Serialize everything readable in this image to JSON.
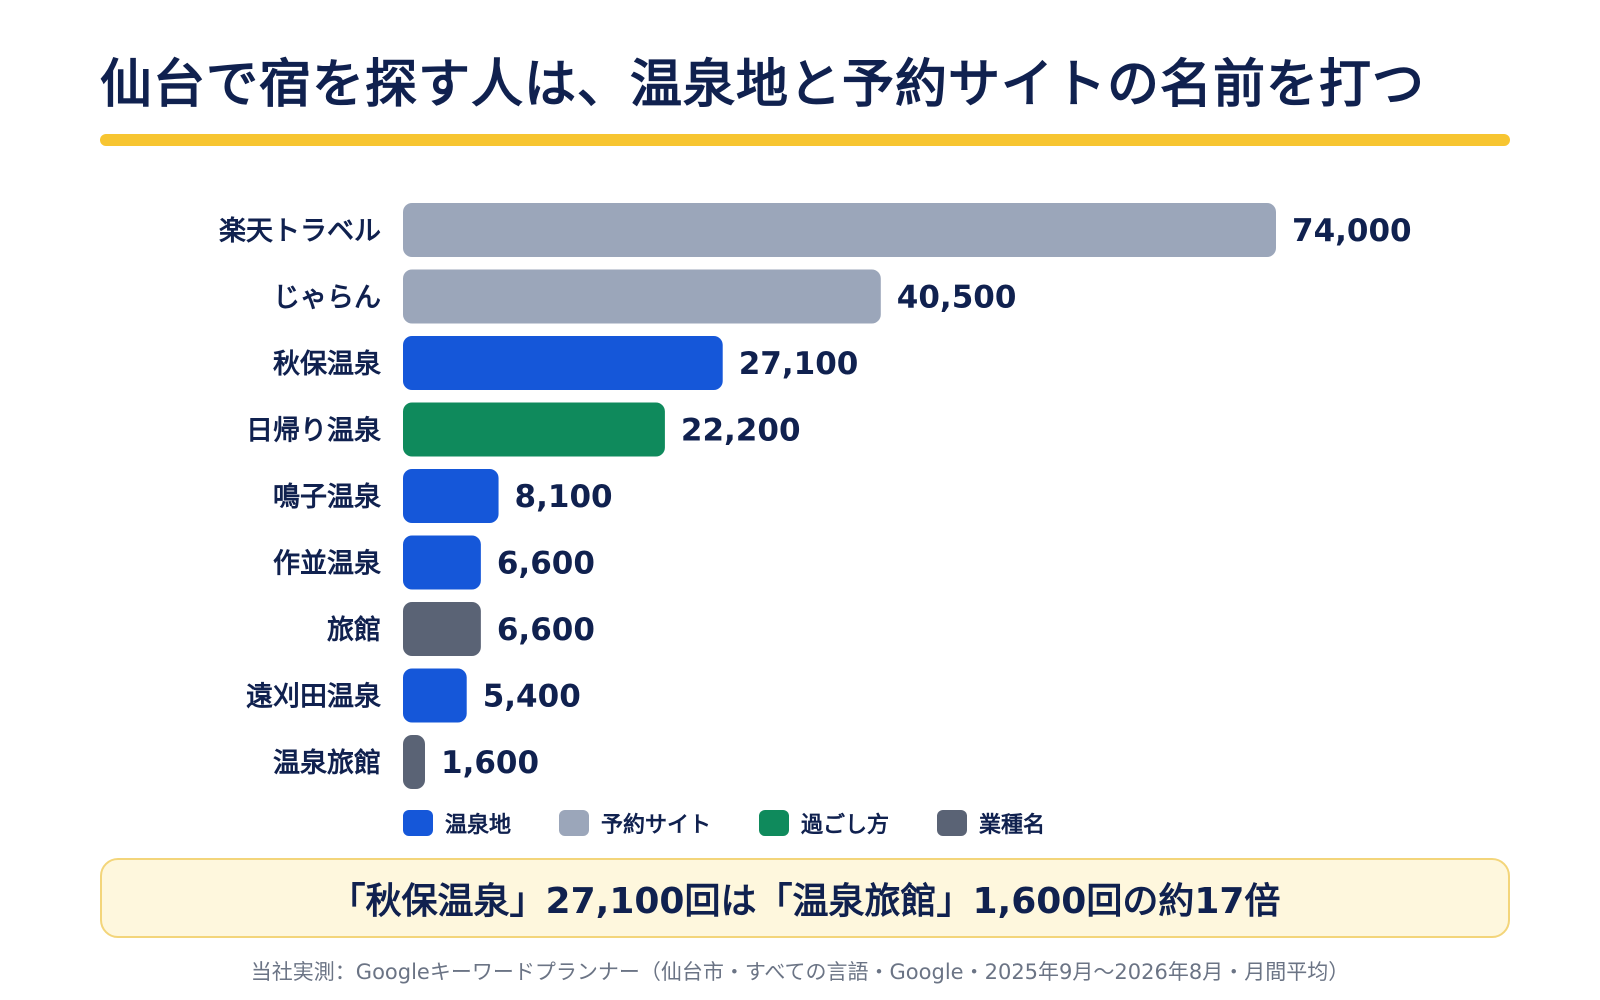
{
  "title": "仙台で宿を探す人は、温泉地と予約サイトの名前を打つ",
  "colors": {
    "温泉地": "#1557d9",
    "予約サイト": "#9ba6ba",
    "過ごし方": "#0f8a5c",
    "業種名": "#5a6375",
    "accent": "#f7c531",
    "text": "#10214f"
  },
  "legend": [
    {
      "label": "温泉地",
      "color": "#1557d9"
    },
    {
      "label": "予約サイト",
      "color": "#9ba6ba"
    },
    {
      "label": "過ごし方",
      "color": "#0f8a5c"
    },
    {
      "label": "業種名",
      "color": "#5a6375"
    }
  ],
  "chart_data": {
    "type": "bar",
    "orientation": "horizontal",
    "categories": [
      "楽天トラベル",
      "じゃらん",
      "秋保温泉",
      "日帰り温泉",
      "鳴子温泉",
      "作並温泉",
      "旅館",
      "遠刈田温泉",
      "温泉旅館"
    ],
    "values": [
      74000,
      40500,
      27100,
      22200,
      8100,
      6600,
      6600,
      5400,
      1600
    ],
    "value_labels": [
      "74,000",
      "40,500",
      "27,100",
      "22,200",
      "8,100",
      "6,600",
      "6,600",
      "5,400",
      "1,600"
    ],
    "groups": [
      "予約サイト",
      "予約サイト",
      "温泉地",
      "過ごし方",
      "温泉地",
      "温泉地",
      "業種名",
      "温泉地",
      "業種名"
    ],
    "xlim": [
      0,
      74000
    ],
    "grid": false,
    "legend_position": "bottom"
  },
  "callout": "「秋保温泉」27,100回は「温泉旅館」1,600回の約17倍",
  "source": "当社実測：Googleキーワードプランナー（仙台市・すべての言語・Google・2025年9月〜2026年8月・月間平均）"
}
